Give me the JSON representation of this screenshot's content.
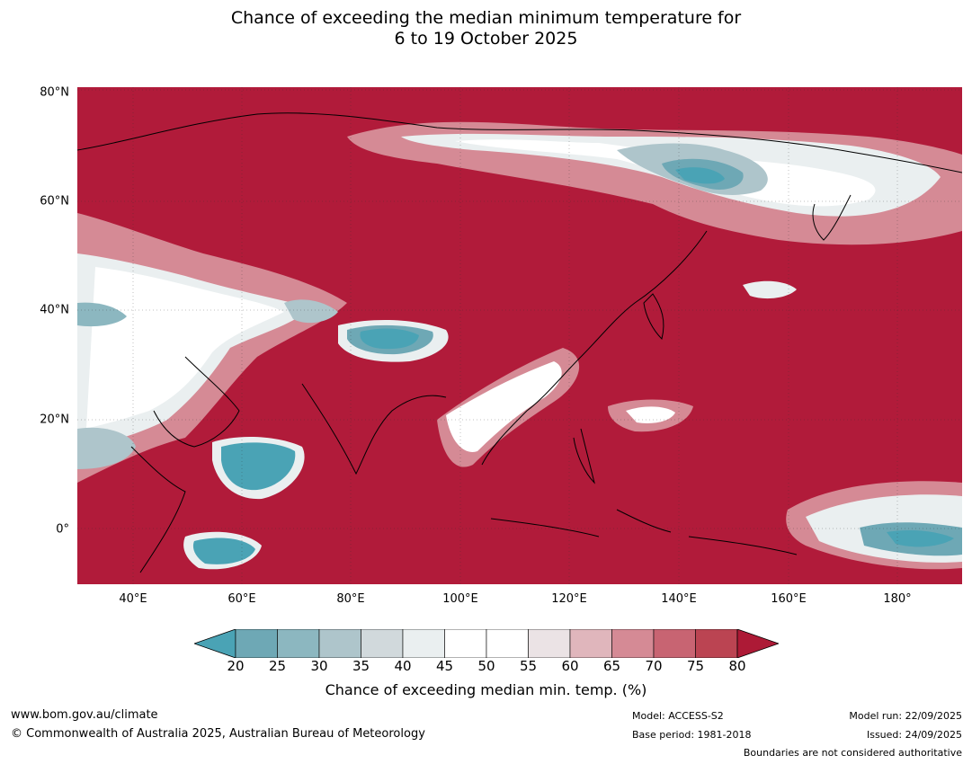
{
  "title": {
    "line1": "Chance of exceeding the median minimum temperature for",
    "line2": "6 to 19 October 2025"
  },
  "map": {
    "region": "Asia and Western Pacific",
    "background_color": "#b11b3a",
    "lat_labels": [
      "80°N",
      "60°N",
      "40°N",
      "20°N",
      "0°"
    ],
    "lon_labels": [
      "40°E",
      "60°E",
      "80°E",
      "100°E",
      "120°E",
      "140°E",
      "160°E",
      "180°"
    ]
  },
  "colorbar": {
    "ticks": [
      "20",
      "25",
      "30",
      "35",
      "40",
      "45",
      "50",
      "55",
      "60",
      "65",
      "70",
      "75",
      "80"
    ],
    "colors": [
      "#4aa3b5",
      "#6ea8b5",
      "#8cb7c0",
      "#aec5cb",
      "#d1d9dc",
      "#eaeff0",
      "#ffffff",
      "#ffffff",
      "#ebe3e5",
      "#e0b6bc",
      "#d58a95",
      "#c86472",
      "#bb4452",
      "#ad1a36"
    ],
    "label": "Chance of exceeding median min. temp. (%)"
  },
  "footer": {
    "website": "www.bom.gov.au/climate",
    "copyright": "© Commonwealth of Australia 2025, Australian Bureau of Meteorology",
    "model": "Model: ACCESS-S2",
    "base_period": "Base period: 1981-2018",
    "model_run": "Model run: 22/09/2025",
    "issued": "Issued: 24/09/2025",
    "disclaimer": "Boundaries are not considered authoritative"
  }
}
